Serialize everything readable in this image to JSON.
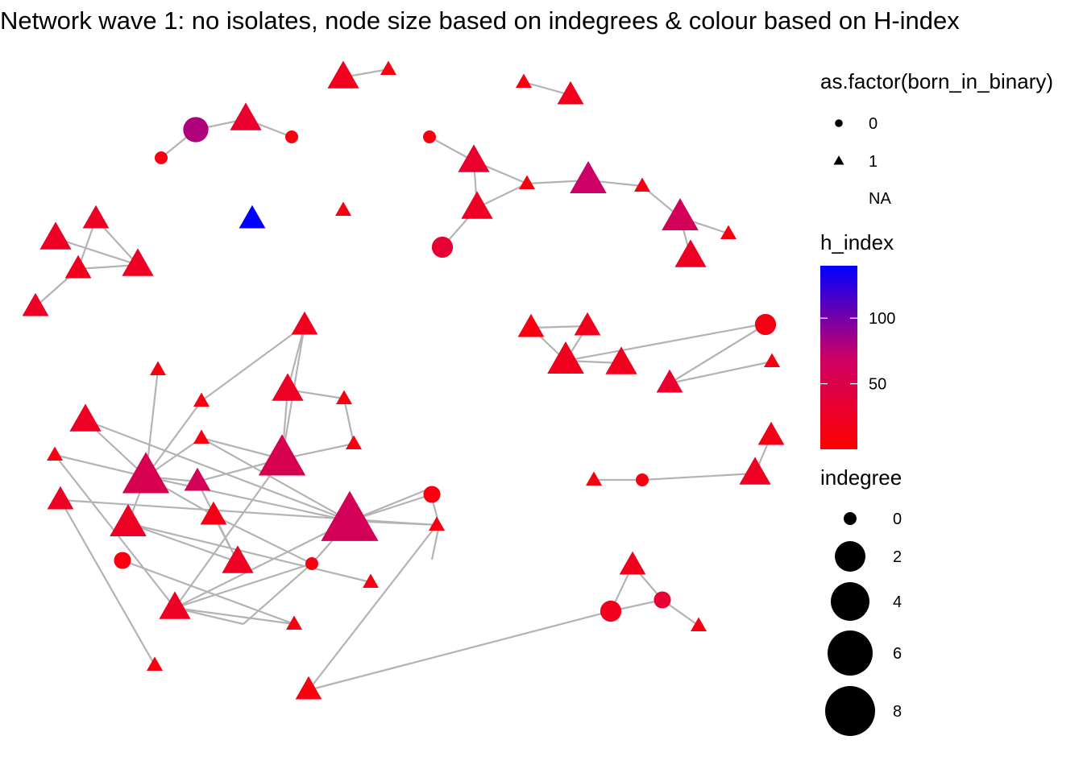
{
  "title": "Network wave 1: no isolates, node size based on indegrees & colour based on H-index",
  "colors": {
    "edge": "#b3b3b3",
    "low": "#ff0000",
    "mid": "#cc0066",
    "high": "#0000ff"
  },
  "chart_data": {
    "type": "network",
    "nodes": [
      {
        "id": "n1",
        "shape": "triangle",
        "indegree": 3,
        "h_index": 20
      },
      {
        "id": "n2",
        "shape": "triangle",
        "indegree": 0,
        "h_index": 10
      },
      {
        "id": "n3",
        "shape": "triangle",
        "indegree": 0,
        "h_index": 10
      },
      {
        "id": "n4",
        "shape": "triangle",
        "indegree": 2,
        "h_index": 20
      },
      {
        "id": "n5",
        "shape": "circle",
        "indegree": 3,
        "h_index": 80
      },
      {
        "id": "n6",
        "shape": "triangle",
        "indegree": 3,
        "h_index": 30
      },
      {
        "id": "n7",
        "shape": "circle",
        "indegree": 0,
        "h_index": 10
      },
      {
        "id": "n8",
        "shape": "circle",
        "indegree": 0,
        "h_index": 10
      },
      {
        "id": "n9",
        "shape": "circle",
        "indegree": 0,
        "h_index": 10
      },
      {
        "id": "n10",
        "shape": "triangle",
        "indegree": 3,
        "h_index": 30
      },
      {
        "id": "n11",
        "shape": "triangle",
        "indegree": 0,
        "h_index": 10
      },
      {
        "id": "n12",
        "shape": "triangle",
        "indegree": 4,
        "h_index": 70
      },
      {
        "id": "n13",
        "shape": "triangle",
        "indegree": 0,
        "h_index": 10
      },
      {
        "id": "n14",
        "shape": "triangle",
        "indegree": 3,
        "h_index": 25
      },
      {
        "id": "n15",
        "shape": "circle",
        "indegree": 2,
        "h_index": 35
      },
      {
        "id": "n16",
        "shape": "triangle",
        "indegree": 4,
        "h_index": 60
      },
      {
        "id": "n17",
        "shape": "triangle",
        "indegree": 0,
        "h_index": 10
      },
      {
        "id": "n18",
        "shape": "triangle",
        "indegree": 3,
        "h_index": 25
      },
      {
        "id": "n19",
        "shape": "triangle",
        "indegree": 2,
        "h_index": 140
      },
      {
        "id": "n20",
        "shape": "triangle",
        "indegree": 2,
        "h_index": 25
      },
      {
        "id": "n21",
        "shape": "triangle",
        "indegree": 3,
        "h_index": 25
      },
      {
        "id": "n22",
        "shape": "triangle",
        "indegree": 2,
        "h_index": 20
      },
      {
        "id": "n23",
        "shape": "triangle",
        "indegree": 3,
        "h_index": 25
      },
      {
        "id": "n24",
        "shape": "triangle",
        "indegree": 2,
        "h_index": 25
      },
      {
        "id": "n25",
        "shape": "triangle",
        "indegree": 2,
        "h_index": 20
      },
      {
        "id": "n26",
        "shape": "triangle",
        "indegree": 2,
        "h_index": 10
      },
      {
        "id": "n27",
        "shape": "triangle",
        "indegree": 0,
        "h_index": 10
      },
      {
        "id": "n28",
        "shape": "triangle",
        "indegree": 4,
        "h_index": 20
      },
      {
        "id": "n29",
        "shape": "triangle",
        "indegree": 3,
        "h_index": 20
      },
      {
        "id": "n30",
        "shape": "triangle",
        "indegree": 0,
        "h_index": 10
      },
      {
        "id": "n31",
        "shape": "triangle",
        "indegree": 2,
        "h_index": 30
      },
      {
        "id": "n32",
        "shape": "circle",
        "indegree": 2,
        "h_index": 15
      },
      {
        "id": "n33",
        "shape": "triangle",
        "indegree": 0,
        "h_index": 10
      },
      {
        "id": "n34",
        "shape": "triangle",
        "indegree": 2,
        "h_index": 20
      },
      {
        "id": "n35",
        "shape": "triangle",
        "indegree": 0,
        "h_index": 10
      },
      {
        "id": "n36",
        "shape": "triangle",
        "indegree": 0,
        "h_index": 10
      },
      {
        "id": "n37",
        "shape": "triangle",
        "indegree": 3,
        "h_index": 25
      },
      {
        "id": "n38",
        "shape": "triangle",
        "indegree": 0,
        "h_index": 10
      },
      {
        "id": "n39",
        "shape": "triangle",
        "indegree": 6,
        "h_index": 55
      },
      {
        "id": "n40",
        "shape": "triangle",
        "indegree": 0,
        "h_index": 10
      },
      {
        "id": "n41",
        "shape": "triangle",
        "indegree": 6,
        "h_index": 55
      },
      {
        "id": "n42",
        "shape": "triangle",
        "indegree": 0,
        "h_index": 10
      },
      {
        "id": "n43",
        "shape": "triangle",
        "indegree": 3,
        "h_index": 25
      },
      {
        "id": "n44",
        "shape": "triangle",
        "indegree": 2,
        "h_index": 60
      },
      {
        "id": "n45",
        "shape": "triangle",
        "indegree": 8,
        "h_index": 60
      },
      {
        "id": "n46",
        "shape": "triangle",
        "indegree": 2,
        "h_index": 15
      },
      {
        "id": "n47",
        "shape": "triangle",
        "indegree": 0,
        "h_index": 10
      },
      {
        "id": "n48",
        "shape": "circle",
        "indegree": 1,
        "h_index": 10
      },
      {
        "id": "n49",
        "shape": "circle",
        "indegree": 0,
        "h_index": 10
      },
      {
        "id": "n50",
        "shape": "triangle",
        "indegree": 3,
        "h_index": 25
      },
      {
        "id": "n51",
        "shape": "triangle",
        "indegree": 4,
        "h_index": 25
      },
      {
        "id": "n52",
        "shape": "triangle",
        "indegree": 3,
        "h_index": 25
      },
      {
        "id": "n53",
        "shape": "triangle",
        "indegree": 0,
        "h_index": 10
      },
      {
        "id": "n54",
        "shape": "triangle",
        "indegree": 0,
        "h_index": 10
      },
      {
        "id": "n55",
        "shape": "circle",
        "indegree": 1,
        "h_index": 10
      },
      {
        "id": "n56",
        "shape": "triangle",
        "indegree": 0,
        "h_index": 10
      },
      {
        "id": "n57",
        "shape": "triangle",
        "indegree": 2,
        "h_index": 25
      },
      {
        "id": "n58",
        "shape": "triangle",
        "indegree": 0,
        "h_index": 10
      },
      {
        "id": "n59",
        "shape": "triangle",
        "indegree": 2,
        "h_index": 10
      },
      {
        "id": "n60",
        "shape": "circle",
        "indegree": 2,
        "h_index": 20
      },
      {
        "id": "n61",
        "shape": "circle",
        "indegree": 1,
        "h_index": 35
      },
      {
        "id": "n62",
        "shape": "triangle",
        "indegree": 0,
        "h_index": 10
      },
      {
        "id": "n63",
        "shape": "triangle",
        "indegree": 2,
        "h_index": 20
      },
      {
        "id": "n64",
        "shape": "triangle",
        "indegree": 0,
        "h_index": 10
      },
      {
        "id": "n65",
        "shape": "circle",
        "indegree": 0,
        "h_index": 10
      },
      {
        "id": "n66",
        "shape": "triangle",
        "indegree": 3,
        "h_index": 25
      },
      {
        "id": "n67",
        "shape": "triangle",
        "indegree": 2,
        "h_index": 15
      }
    ],
    "edges": [
      [
        "n1",
        "n2"
      ],
      [
        "n3",
        "n4"
      ],
      [
        "n7",
        "n5"
      ],
      [
        "n5",
        "n6"
      ],
      [
        "n6",
        "n8"
      ],
      [
        "n9",
        "n10"
      ],
      [
        "n10",
        "n11"
      ],
      [
        "n10",
        "n14"
      ],
      [
        "n11",
        "n12"
      ],
      [
        "n11",
        "n14"
      ],
      [
        "n12",
        "n13"
      ],
      [
        "n13",
        "n16"
      ],
      [
        "n16",
        "n17"
      ],
      [
        "n16",
        "n18"
      ],
      [
        "n14",
        "n15"
      ],
      [
        "n20",
        "n22"
      ],
      [
        "n20",
        "n23"
      ],
      [
        "n22",
        "n23"
      ],
      [
        "n22",
        "n24"
      ],
      [
        "n23",
        "n21"
      ],
      [
        "n25",
        "n26"
      ],
      [
        "n25",
        "n28"
      ],
      [
        "n26",
        "n28"
      ],
      [
        "n27",
        "n28"
      ],
      [
        "n28",
        "n29"
      ],
      [
        "n30",
        "n31"
      ],
      [
        "n31",
        "n32"
      ],
      [
        "n34",
        "n36"
      ],
      [
        "n34",
        "n37"
      ],
      [
        "n34",
        "n41"
      ],
      [
        "n37",
        "n41"
      ],
      [
        "n36",
        "n39"
      ],
      [
        "n35",
        "n39"
      ],
      [
        "n37",
        "n38"
      ],
      [
        "n38",
        "n40"
      ],
      [
        "n40",
        "n41"
      ],
      [
        "n41",
        "n42"
      ],
      [
        "n39",
        "n42"
      ],
      [
        "n39",
        "n43"
      ],
      [
        "n39",
        "n44"
      ],
      [
        "n39",
        "n45"
      ],
      [
        "n39",
        "n46"
      ],
      [
        "n39",
        "n47"
      ],
      [
        "n39",
        "n51"
      ],
      [
        "n41",
        "n44"
      ],
      [
        "n42",
        "n45"
      ],
      [
        "n43",
        "n45"
      ],
      [
        "n44",
        "n50"
      ],
      [
        "n45",
        "n48"
      ],
      [
        "n45",
        "n49"
      ],
      [
        "n45",
        "n52"
      ],
      [
        "n46",
        "n49"
      ],
      [
        "n46",
        "n50"
      ],
      [
        "n47",
        "n52"
      ],
      [
        "n49",
        "n52"
      ],
      [
        "n50",
        "n51"
      ],
      [
        "n51",
        "n53"
      ],
      [
        "n41",
        "n52"
      ],
      [
        "n52",
        "n54"
      ],
      [
        "n54",
        "n55"
      ],
      [
        "n56",
        "n57"
      ],
      [
        "n57",
        "n58"
      ],
      [
        "n58",
        "n59"
      ],
      [
        "n59",
        "n60"
      ],
      [
        "n60",
        "n61"
      ],
      [
        "n60",
        "n63"
      ],
      [
        "n61",
        "n62"
      ],
      [
        "n61",
        "n63"
      ],
      [
        "n64",
        "n65"
      ],
      [
        "n65",
        "n66"
      ],
      [
        "n66",
        "n67"
      ]
    ]
  },
  "legend": {
    "shape_title": "as.factor(born_in_binary)",
    "shape_items": [
      {
        "label": "0",
        "shape": "circle"
      },
      {
        "label": "1",
        "shape": "triangle"
      },
      {
        "label": "NA",
        "shape": "none"
      }
    ],
    "color_title": "h_index",
    "color_ticks": [
      {
        "label": "100",
        "value": 100
      },
      {
        "label": "50",
        "value": 50
      }
    ],
    "color_range": [
      0,
      140
    ],
    "size_title": "indegree",
    "size_items": [
      {
        "label": "0",
        "value": 0
      },
      {
        "label": "2",
        "value": 2
      },
      {
        "label": "4",
        "value": 4
      },
      {
        "label": "6",
        "value": 6
      },
      {
        "label": "8",
        "value": 8
      }
    ]
  }
}
